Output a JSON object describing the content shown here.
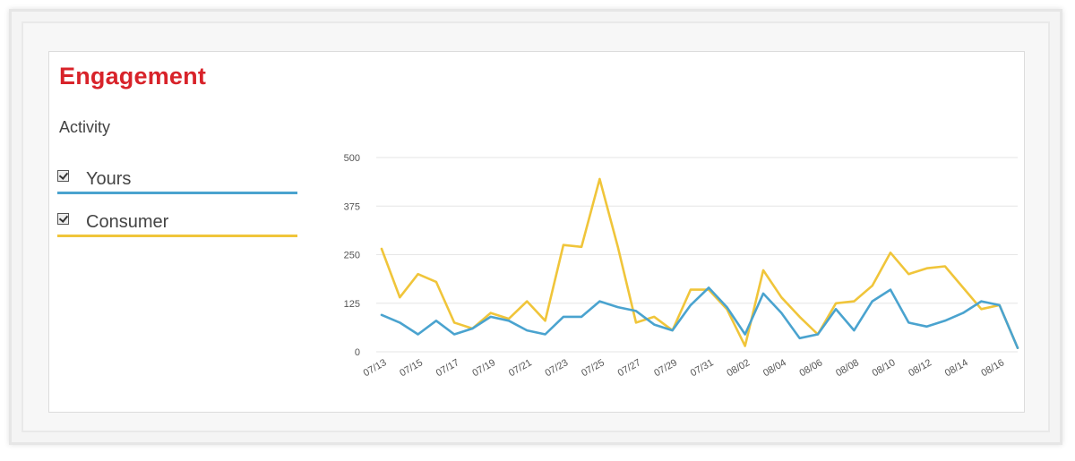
{
  "header": {
    "title": "Engagement",
    "subtitle": "Activity"
  },
  "legend": {
    "items": [
      {
        "label": "Yours",
        "checked": true,
        "color": "#4aa3cf"
      },
      {
        "label": "Consumer",
        "checked": true,
        "color": "#f0c53a"
      }
    ]
  },
  "colors": {
    "title": "#d8232a",
    "grid": "#e6e6e6",
    "axis_text": "#555555"
  },
  "chart_data": {
    "type": "line",
    "title": "",
    "xlabel": "",
    "ylabel": "",
    "ylim": [
      0,
      500
    ],
    "yticks": [
      0,
      125,
      250,
      375,
      500
    ],
    "ytick_labels": [
      "0",
      "125",
      "250",
      "375",
      "500"
    ],
    "grid": true,
    "x": [
      "07/13",
      "07/14",
      "07/15",
      "07/16",
      "07/17",
      "07/18",
      "07/19",
      "07/20",
      "07/21",
      "07/22",
      "07/23",
      "07/24",
      "07/25",
      "07/26",
      "07/27",
      "07/28",
      "07/29",
      "07/30",
      "07/31",
      "08/01",
      "08/02",
      "08/03",
      "08/04",
      "08/05",
      "08/06",
      "08/07",
      "08/08",
      "08/09",
      "08/10",
      "08/11",
      "08/12",
      "08/13",
      "08/14",
      "08/15",
      "08/16",
      "08/17"
    ],
    "x_tick_labels": [
      "07/13",
      "07/15",
      "07/17",
      "07/19",
      "07/21",
      "07/23",
      "07/25",
      "07/27",
      "07/29",
      "07/31",
      "08/02",
      "08/04",
      "08/06",
      "08/08",
      "08/10",
      "08/12",
      "08/14",
      "08/16"
    ],
    "series": [
      {
        "name": "Yours",
        "color": "#4aa3cf",
        "values": [
          95,
          75,
          45,
          80,
          45,
          60,
          90,
          80,
          55,
          45,
          90,
          90,
          130,
          115,
          105,
          70,
          55,
          120,
          165,
          115,
          45,
          150,
          100,
          35,
          45,
          110,
          55,
          130,
          160,
          75,
          65,
          80,
          100,
          130,
          120,
          10
        ]
      },
      {
        "name": "Consumer",
        "color": "#f0c53a",
        "values": [
          265,
          140,
          200,
          180,
          75,
          60,
          100,
          85,
          130,
          80,
          275,
          270,
          445,
          270,
          75,
          90,
          55,
          160,
          160,
          110,
          15,
          210,
          140,
          90,
          45,
          125,
          130,
          170,
          255,
          200,
          215,
          220,
          165,
          110,
          120,
          10
        ]
      }
    ]
  }
}
